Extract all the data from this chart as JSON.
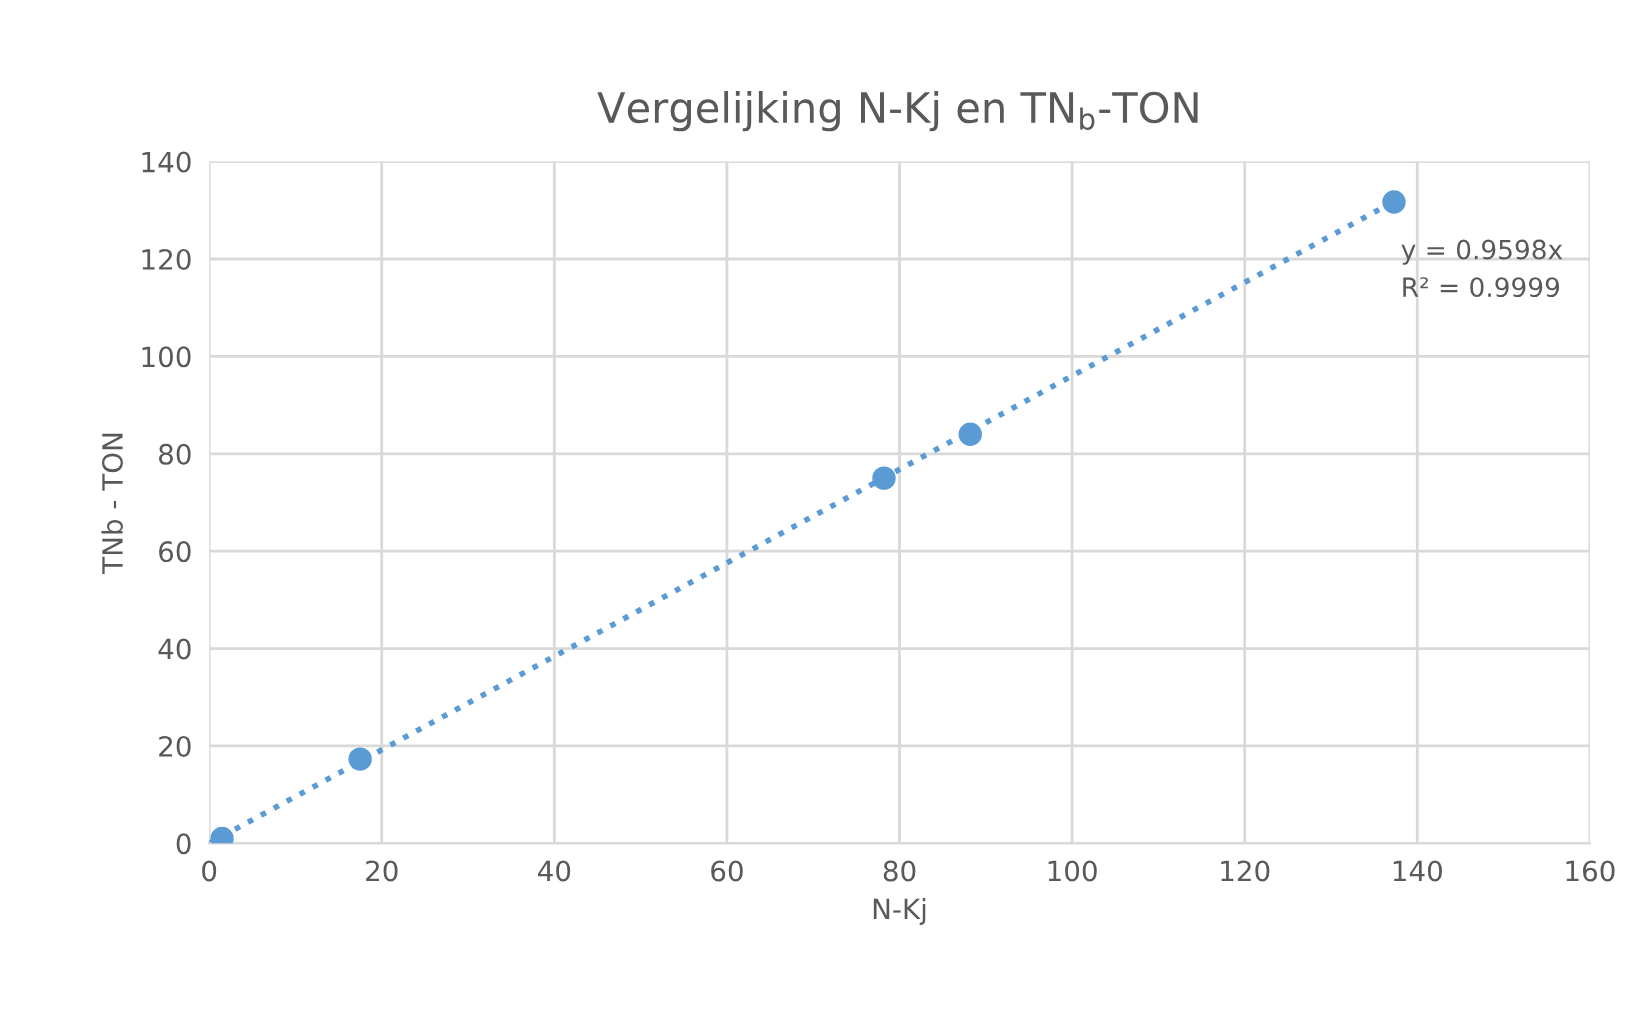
{
  "chart_data": {
    "type": "scatter",
    "title": "Vergelijking N-Kj en TN$_{b}$-TON",
    "xlabel": "N-Kj",
    "ylabel": "TNb - TON",
    "x": [
      1.5,
      17.5,
      78.2,
      88.2,
      137.3
    ],
    "series": [
      {
        "color": "#5b9bd5",
        "values": [
          1,
          17.3,
          75,
          84,
          131.7
        ],
        "marker": "circle"
      },
      {
        "type": "line",
        "color": "#5b9bd5",
        "x": [
          0,
          137.3
        ],
        "values": [
          0,
          131.8
        ],
        "line_style": "dotted",
        "marker": "none"
      }
    ],
    "annotations": [
      "y = 0.9598x\nR² = 0.9999"
    ],
    "xlim": [
      0,
      160
    ],
    "xticks": [
      0,
      20,
      40,
      60,
      80,
      100,
      120,
      140,
      160
    ],
    "ylim": [
      0,
      140
    ],
    "yticks": [
      0,
      20,
      40,
      60,
      80,
      100,
      120,
      140
    ],
    "grid": true,
    "legend": false
  }
}
